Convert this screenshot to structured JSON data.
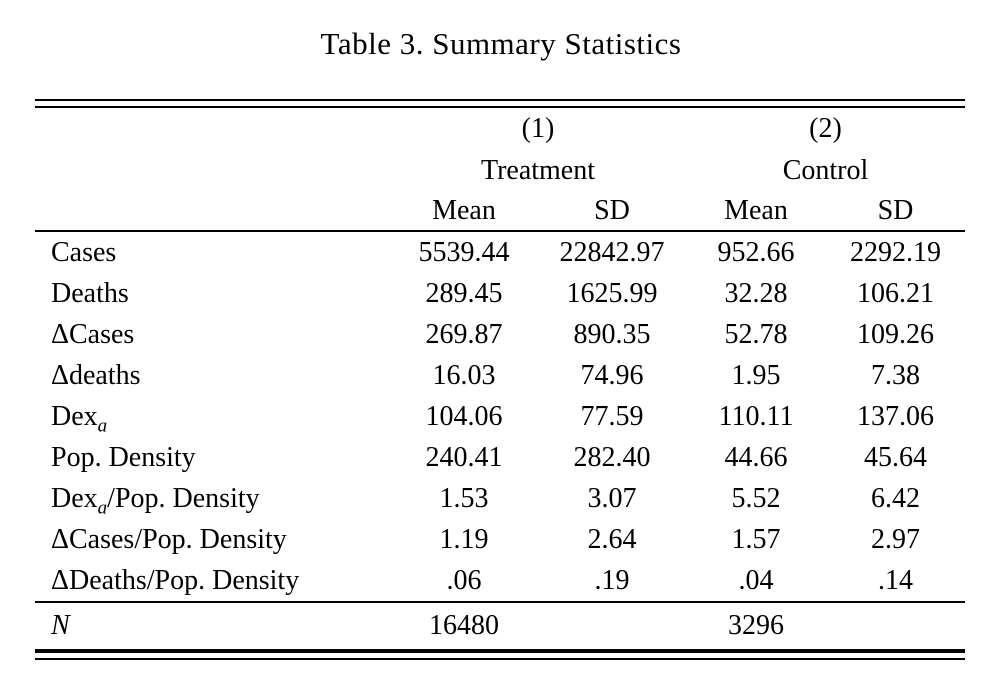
{
  "title": "Table 3. Summary Statistics",
  "table": {
    "headers": {
      "group1_num": "(1)",
      "group2_num": "(2)",
      "group1": "Treatment",
      "group2": "Control",
      "mean": "Mean",
      "sd": "SD"
    },
    "rows": [
      {
        "label": "Cases",
        "label_sub": "",
        "label_post": "",
        "t_mean": "5539.44",
        "t_sd": "22842.97",
        "c_mean": "952.66",
        "c_sd": "2292.19"
      },
      {
        "label": "Deaths",
        "label_sub": "",
        "label_post": "",
        "t_mean": "289.45",
        "t_sd": "1625.99",
        "c_mean": "32.28",
        "c_sd": "106.21"
      },
      {
        "label": "ΔCases",
        "label_sub": "",
        "label_post": "",
        "t_mean": "269.87",
        "t_sd": "890.35",
        "c_mean": "52.78",
        "c_sd": "109.26"
      },
      {
        "label": "Δdeaths",
        "label_sub": "",
        "label_post": "",
        "t_mean": "16.03",
        "t_sd": "74.96",
        "c_mean": "1.95",
        "c_sd": "7.38"
      },
      {
        "label": "Dex",
        "label_sub": "a",
        "label_post": "",
        "t_mean": "104.06",
        "t_sd": "77.59",
        "c_mean": "110.11",
        "c_sd": "137.06"
      },
      {
        "label": "Pop. Density",
        "label_sub": "",
        "label_post": "",
        "t_mean": "240.41",
        "t_sd": "282.40",
        "c_mean": "44.66",
        "c_sd": "45.64"
      },
      {
        "label": "Dex",
        "label_sub": "a",
        "label_post": "/Pop. Density",
        "t_mean": "1.53",
        "t_sd": "3.07",
        "c_mean": "5.52",
        "c_sd": "6.42"
      },
      {
        "label": "ΔCases/Pop. Density",
        "label_sub": "",
        "label_post": "",
        "t_mean": "1.19",
        "t_sd": "2.64",
        "c_mean": "1.57",
        "c_sd": "2.97"
      },
      {
        "label": "ΔDeaths/Pop. Density",
        "label_sub": "",
        "label_post": "",
        "t_mean": ".06",
        "t_sd": ".19",
        "c_mean": ".04",
        "c_sd": ".14"
      }
    ],
    "footer": {
      "label": "N",
      "t_value": "16480",
      "c_value": "3296"
    }
  }
}
